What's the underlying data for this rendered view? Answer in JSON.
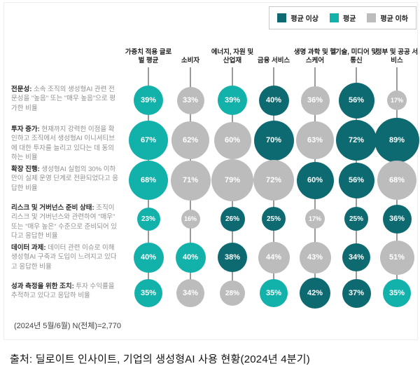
{
  "footnote": "(2024년 5월/6월) N(전체)=2,770",
  "source": "출처: 딜로이트 인사이트, 기업의 생성형AI 사용 현황(2024년 4분기)",
  "chart_data": {
    "type": "bubble",
    "value_suffix": "%",
    "legend_position": "top-right",
    "legend": [
      {
        "key": "above",
        "label": "평균 이상",
        "color": "#0D6A71"
      },
      {
        "key": "average",
        "label": "평균",
        "color": "#12B2AA"
      },
      {
        "key": "below",
        "label": "평균 이하",
        "color": "#BCBCBC"
      }
    ],
    "columns": [
      "가중치 적용 글로벌 평균",
      "소비자",
      "에너지, 자원 및 산업재",
      "금융 서비스",
      "생명 과학 및 헬스케어",
      "기술, 미디어 및 통신",
      "정부 및 공공 서비스"
    ],
    "rows": [
      {
        "title": "전문성:",
        "desc": " 소속 조직의 생성형AI 관련 전문성을 \"높음\" 또는 \"매우 높음\"으로 평가한 비율",
        "values": [
          39,
          33,
          39,
          40,
          36,
          56,
          17
        ],
        "levels": [
          "average",
          "below",
          "average",
          "above",
          "below",
          "above",
          "below"
        ]
      },
      {
        "title": "투자 증가:",
        "desc": " 현재까지 강력한 이점을 확인하고 조직에서 생성형AI 이니셔티브에 대한 투자를 늘리고 있다는 데 동의하는 비율",
        "values": [
          67,
          62,
          60,
          70,
          63,
          72,
          89
        ],
        "levels": [
          "average",
          "below",
          "below",
          "above",
          "below",
          "above",
          "above"
        ]
      },
      {
        "title": "확장 진행:",
        "desc": " 생성형AI 실험의 30% 이하만이 실제 운영 단계로 전환되었다고 응답한 비율",
        "values": [
          68,
          71,
          79,
          72,
          60,
          56,
          68
        ],
        "levels": [
          "average",
          "below",
          "below",
          "below",
          "above",
          "above",
          "below"
        ]
      },
      {
        "title": "리스크 및 거버넌스 준비 상태:",
        "desc": " 조직이 리스크 및 거버넌스와 관련하여 \"매우\" 또는 \"매우 높은\" 수준으로 준비되어 있다고 응답한 비율",
        "values": [
          23,
          16,
          26,
          25,
          17,
          25,
          36
        ],
        "levels": [
          "average",
          "below",
          "above",
          "above",
          "below",
          "above",
          "above"
        ]
      },
      {
        "title": "데이터 과제:",
        "desc": " 데이터 관련 이슈로 이해 생성형AI 구축과 도입이 느려지고 있다고 응답한 비율",
        "values": [
          40,
          40,
          38,
          44,
          43,
          34,
          51
        ],
        "levels": [
          "average",
          "average",
          "above",
          "below",
          "below",
          "above",
          "below"
        ]
      },
      {
        "title": "성과 측정을 위한 조치:",
        "desc": " 투자 수익률을 추적하고 있다고 응답하 비율",
        "values": [
          35,
          34,
          28,
          35,
          42,
          37,
          35
        ],
        "levels": [
          "average",
          "below",
          "below",
          "average",
          "above",
          "above",
          "average"
        ]
      }
    ]
  }
}
